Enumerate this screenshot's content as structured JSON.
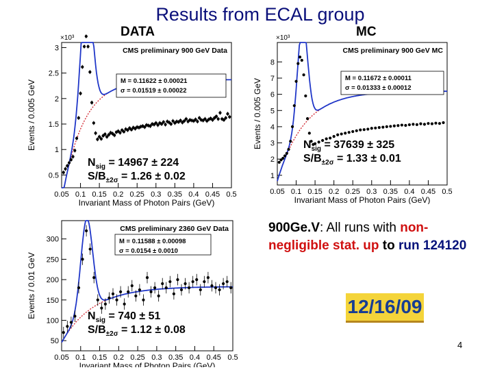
{
  "slide": {
    "title": "Results  from  ECAL group",
    "data_label": "DATA",
    "mc_label": "MC",
    "page_number": "4",
    "date_badge": "12/16/09",
    "note": {
      "energy": "900Ge.V",
      "text1": ": All runs with ",
      "highlight1": "non-negligible stat. up",
      "text2": " to ",
      "text3": "run 124120"
    }
  },
  "chart_data": [
    {
      "type": "scatter",
      "name": "data-900",
      "banner": "CMS preliminary 900 GeV Data",
      "ylabel": "Events / 0.005 GeV",
      "xlabel": "Invariant Mass of Photon Pairs (GeV)",
      "y_exponent": "×10³",
      "xlim": [
        0.05,
        0.5
      ],
      "ylim": [
        0.25,
        3.1
      ],
      "yticks": [
        "0.5",
        "1",
        "1.5",
        "2",
        "2.5",
        "3"
      ],
      "xticks": [
        "0.05",
        "0.1",
        "0.15",
        "0.2",
        "0.25",
        "0.3",
        "0.35",
        "0.4",
        "0.45",
        "0.5"
      ],
      "fit_box": [
        "M = 0.11622 ± 0.00021",
        "σ = 0.01519 ± 0.00022"
      ],
      "nsig": "= 14967 ± 224",
      "sb": "= 1.26 ± 0.02",
      "fit": {
        "peak": 0.1162,
        "sigma": 0.0152,
        "amp": 2.6,
        "bg_a": 0.85,
        "bg_b": 1.52,
        "bg_k": 18,
        "bg_x0": 0.075
      },
      "points_x": [
        0.055,
        0.06,
        0.065,
        0.07,
        0.075,
        0.08,
        0.085,
        0.09,
        0.095,
        0.1,
        0.105,
        0.11,
        0.115,
        0.12,
        0.125,
        0.13,
        0.135,
        0.14,
        0.145,
        0.15,
        0.155,
        0.16,
        0.165,
        0.17,
        0.175,
        0.18,
        0.185,
        0.19,
        0.195,
        0.2,
        0.205,
        0.21,
        0.215,
        0.22,
        0.225,
        0.23,
        0.235,
        0.24,
        0.245,
        0.25,
        0.255,
        0.26,
        0.265,
        0.27,
        0.275,
        0.28,
        0.285,
        0.29,
        0.295,
        0.3,
        0.305,
        0.31,
        0.315,
        0.32,
        0.325,
        0.33,
        0.335,
        0.34,
        0.345,
        0.35,
        0.355,
        0.36,
        0.365,
        0.37,
        0.375,
        0.38,
        0.385,
        0.39,
        0.395,
        0.4,
        0.405,
        0.41,
        0.415,
        0.42,
        0.425,
        0.43,
        0.435,
        0.44,
        0.445,
        0.45,
        0.455,
        0.46,
        0.465,
        0.47,
        0.475,
        0.48,
        0.485,
        0.49,
        0.495
      ],
      "points_y": [
        0.55,
        0.62,
        0.68,
        0.74,
        0.8,
        0.86,
        0.98,
        1.22,
        1.62,
        2.1,
        2.62,
        3.02,
        3.22,
        3.02,
        2.52,
        1.92,
        1.52,
        1.32,
        1.2,
        1.25,
        1.21,
        1.27,
        1.3,
        1.25,
        1.29,
        1.33,
        1.31,
        1.28,
        1.34,
        1.36,
        1.33,
        1.38,
        1.35,
        1.4,
        1.38,
        1.42,
        1.39,
        1.43,
        1.41,
        1.44,
        1.43,
        1.45,
        1.46,
        1.44,
        1.48,
        1.47,
        1.46,
        1.5,
        1.49,
        1.52,
        1.48,
        1.52,
        1.5,
        1.54,
        1.49,
        1.55,
        1.53,
        1.5,
        1.56,
        1.52,
        1.55,
        1.54,
        1.57,
        1.53,
        1.56,
        1.6,
        1.55,
        1.58,
        1.57,
        1.56,
        1.59,
        1.55,
        1.62,
        1.58,
        1.57,
        1.6,
        1.56,
        1.59,
        1.61,
        1.58,
        1.62,
        1.65,
        1.6,
        1.72,
        1.6,
        1.58,
        1.62,
        1.7,
        1.64
      ],
      "error": 0.04
    },
    {
      "type": "scatter",
      "name": "mc-900",
      "banner": "CMS preliminary 900 GeV MC",
      "ylabel": "Events / 0.005 GeV",
      "xlabel": "Invariant Mass of Photon Pairs (GeV)",
      "y_exponent": "×10³",
      "xlim": [
        0.05,
        0.5
      ],
      "ylim": [
        0.4,
        9.2
      ],
      "yticks": [
        "1",
        "2",
        "3",
        "4",
        "5",
        "6",
        "7",
        "8"
      ],
      "xticks": [
        "0.05",
        "0.1",
        "0.15",
        "0.2",
        "0.25",
        "0.3",
        "0.35",
        "0.4",
        "0.45",
        "0.5"
      ],
      "fit_box": [
        "M = 0.11672 ± 0.00011",
        "σ = 0.01333 ± 0.00012"
      ],
      "nsig": "= 37639 ± 325",
      "sb": "= 1.33 ± 0.01",
      "fit": {
        "peak": 0.1167,
        "sigma": 0.0133,
        "amp": 6.4,
        "bg_a": 2.0,
        "bg_b": 4.2,
        "bg_k": 14,
        "bg_x0": 0.07
      },
      "points_x": [
        0.055,
        0.06,
        0.065,
        0.07,
        0.075,
        0.08,
        0.085,
        0.09,
        0.095,
        0.1,
        0.105,
        0.11,
        0.115,
        0.12,
        0.125,
        0.13,
        0.135,
        0.14,
        0.145,
        0.15,
        0.16,
        0.17,
        0.18,
        0.19,
        0.2,
        0.21,
        0.22,
        0.23,
        0.24,
        0.25,
        0.26,
        0.27,
        0.28,
        0.29,
        0.3,
        0.31,
        0.32,
        0.33,
        0.34,
        0.35,
        0.36,
        0.37,
        0.38,
        0.39,
        0.4,
        0.41,
        0.42,
        0.43,
        0.44,
        0.45,
        0.46,
        0.47,
        0.48,
        0.49
      ],
      "points_y": [
        1.8,
        1.95,
        2.05,
        2.2,
        2.35,
        2.6,
        3.1,
        4.0,
        5.3,
        6.8,
        7.9,
        8.3,
        8.1,
        7.2,
        5.9,
        4.5,
        3.6,
        3.1,
        2.9,
        2.95,
        3.05,
        3.15,
        3.25,
        3.3,
        3.4,
        3.5,
        3.55,
        3.6,
        3.65,
        3.7,
        3.75,
        3.8,
        3.82,
        3.85,
        3.9,
        3.92,
        3.95,
        3.97,
        4.0,
        4.02,
        4.05,
        4.07,
        4.1,
        4.08,
        4.12,
        4.15,
        4.13,
        4.18,
        4.15,
        4.2,
        4.18,
        4.22,
        4.2,
        4.25
      ],
      "error": 0.06
    },
    {
      "type": "scatter",
      "name": "data-2360",
      "banner": "CMS preliminary 2360 GeV Data",
      "ylabel": "Events / 0.01 GeV",
      "xlabel": "Invariant Mass of Photon Pairs (GeV)",
      "y_exponent": "",
      "xlim": [
        0.05,
        0.5
      ],
      "ylim": [
        25,
        345
      ],
      "yticks": [
        "50",
        "100",
        "150",
        "200",
        "250",
        "300"
      ],
      "xticks": [
        "0.05",
        "0.1",
        "0.15",
        "0.2",
        "0.25",
        "0.3",
        "0.35",
        "0.4",
        "0.45",
        "0.5"
      ],
      "fit_box": [
        "M = 0.11588 ± 0.00098",
        "σ = 0.0154 ± 0.0010"
      ],
      "nsig": "= 740 ± 51",
      "sb": "= 1.12 ± 0.08",
      "fit": {
        "peak": 0.1159,
        "sigma": 0.0154,
        "amp": 230,
        "bg_a": 75,
        "bg_b": 108,
        "bg_k": 12,
        "bg_x0": 0.07
      },
      "points_x": [
        0.055,
        0.065,
        0.075,
        0.085,
        0.095,
        0.105,
        0.115,
        0.125,
        0.135,
        0.145,
        0.155,
        0.165,
        0.175,
        0.185,
        0.195,
        0.205,
        0.215,
        0.225,
        0.235,
        0.245,
        0.255,
        0.265,
        0.275,
        0.285,
        0.295,
        0.305,
        0.315,
        0.325,
        0.335,
        0.345,
        0.355,
        0.365,
        0.375,
        0.385,
        0.395,
        0.405,
        0.415,
        0.425,
        0.435,
        0.445,
        0.455,
        0.465,
        0.475,
        0.485,
        0.495
      ],
      "points_y": [
        70,
        85,
        95,
        110,
        180,
        250,
        320,
        275,
        205,
        150,
        130,
        140,
        155,
        165,
        150,
        170,
        140,
        170,
        185,
        160,
        175,
        150,
        205,
        170,
        180,
        160,
        190,
        180,
        195,
        165,
        200,
        175,
        190,
        180,
        195,
        200,
        175,
        195,
        205,
        185,
        180,
        175,
        190,
        195,
        180
      ],
      "error": 14
    }
  ]
}
